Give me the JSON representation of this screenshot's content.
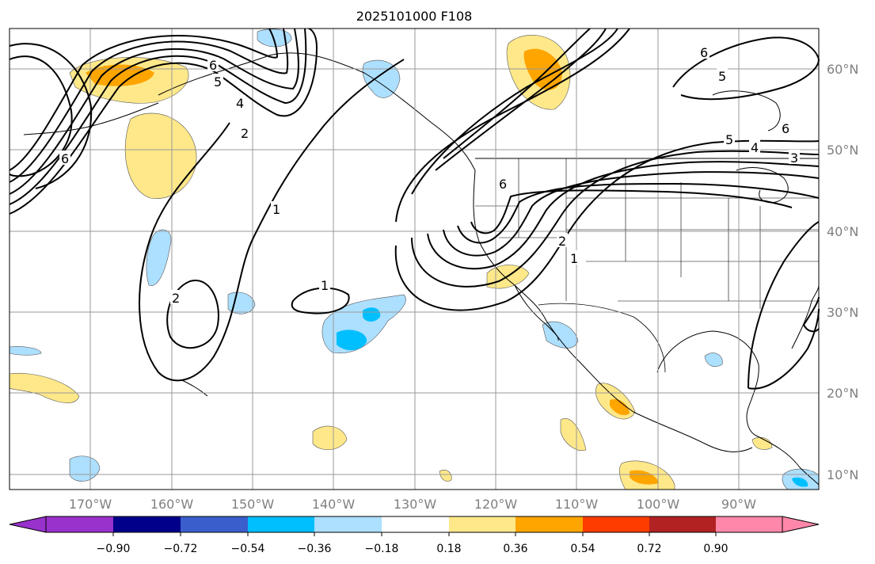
{
  "title": "2025101000 F108",
  "map": {
    "lat_labels": [
      "60°N",
      "50°N",
      "40°N",
      "30°N",
      "20°N",
      "10°N"
    ],
    "lon_labels": [
      "170°W",
      "160°W",
      "150°W",
      "140°W",
      "130°W",
      "120°W",
      "110°W",
      "100°W",
      "90°W"
    ],
    "contour_labels": [
      "6",
      "5",
      "4",
      "2",
      "6",
      "1",
      "2",
      "1",
      "6",
      "2",
      "1",
      "6",
      "5",
      "4",
      "3",
      "6",
      "5"
    ],
    "gridlines": true
  },
  "colorbar": {
    "tick_labels": [
      "−0.90",
      "−0.72",
      "−0.54",
      "−0.36",
      "−0.18",
      "0.18",
      "0.36",
      "0.54",
      "0.72",
      "0.90"
    ],
    "colors": [
      "#9932CC",
      "#00008B",
      "#3A5FCD",
      "#00BFFF",
      "#ADDFFF",
      "#FFFFFF",
      "#FFE88A",
      "#FFA500",
      "#FF3C00",
      "#B22222",
      "#FF88AA"
    ]
  }
}
